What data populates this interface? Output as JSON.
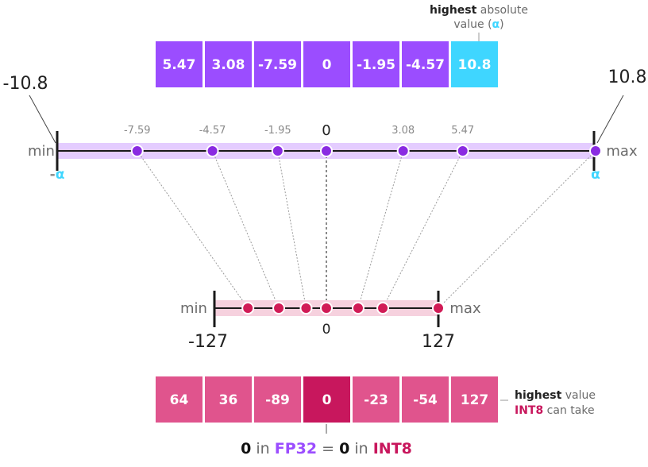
{
  "colors": {
    "fp32_cell": "#9b4dff",
    "alpha_cell": "#3fd6ff",
    "int8_cell": "#e0548d",
    "int8_zero": "#c8175d",
    "fp32_band": "#e4ccff",
    "int8_band": "#f6d1de",
    "fp32_dot": "#8a2be2",
    "int8_dot": "#d11b56",
    "alpha": "#3fd6ff"
  },
  "fp32": {
    "values": [
      "5.47",
      "3.08",
      "-7.59",
      "0",
      "-1.95",
      "-4.57",
      "10.8"
    ],
    "highest_note": {
      "bold": "highest",
      "rest": " absolute",
      "line2_pre": "value (",
      "alpha": "α",
      "line2_post": ")"
    }
  },
  "top_line": {
    "left_value": "-10.8",
    "right_value": "10.8",
    "min_label": "min",
    "max_label": "max",
    "neg_alpha_dash": "-",
    "alpha": "α",
    "points": [
      {
        "value": -7.59,
        "label": "-7.59"
      },
      {
        "value": -4.57,
        "label": "-4.57"
      },
      {
        "value": -1.95,
        "label": "-1.95"
      },
      {
        "value": 0,
        "label": "0"
      },
      {
        "value": 3.08,
        "label": "3.08"
      },
      {
        "value": 5.47,
        "label": "5.47"
      }
    ],
    "range": [
      -10.8,
      10.8
    ]
  },
  "bottom_line": {
    "min_label": "min",
    "max_label": "max",
    "left_value": "-127",
    "right_value": "127",
    "zero_label": "0",
    "points": [
      -89,
      -54,
      -23,
      0,
      36,
      64,
      127
    ],
    "range": [
      -127,
      127
    ]
  },
  "int8": {
    "values": [
      "64",
      "36",
      "-89",
      "0",
      "-23",
      "-54",
      "127"
    ],
    "highest_note": {
      "bold": "highest",
      "rest": " value",
      "line2_int8": "INT8",
      "line2_rest": " can take"
    }
  },
  "caption": {
    "zero1": "0",
    "in1": " in ",
    "fp32": "FP32",
    "eq": " = ",
    "zero2": "0",
    "in2": " in ",
    "int8": "INT8"
  }
}
